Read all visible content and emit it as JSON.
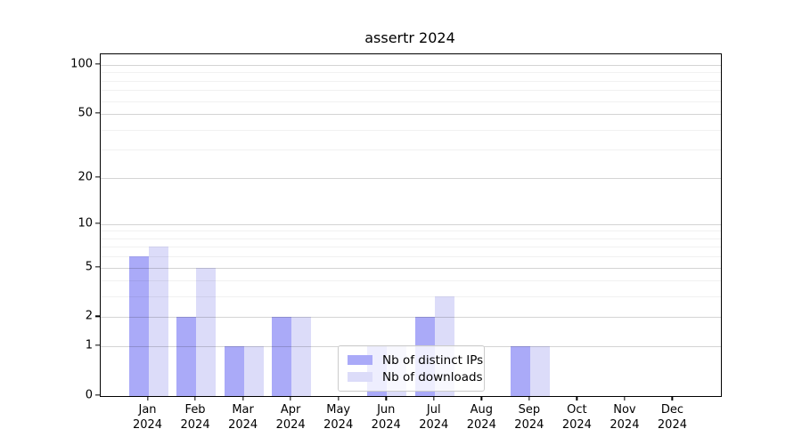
{
  "chart_data": {
    "type": "bar",
    "title": "assertr 2024",
    "categories": [
      "Jan",
      "Feb",
      "Mar",
      "Apr",
      "May",
      "Jun",
      "Jul",
      "Aug",
      "Sep",
      "Oct",
      "Nov",
      "Dec"
    ],
    "category_year": "2024",
    "series": [
      {
        "name": "Nb of distinct IPs",
        "color": "#aaaaf8",
        "values": [
          6,
          2,
          1,
          2,
          0,
          1,
          2,
          0,
          1,
          0,
          0,
          0
        ]
      },
      {
        "name": "Nb of downloads",
        "color": "#dcdcf9",
        "values": [
          7,
          5,
          1,
          2,
          0,
          1,
          3,
          0,
          1,
          0,
          0,
          0
        ]
      }
    ],
    "yscale": "log1p",
    "ylim": [
      0,
      117
    ],
    "ytick_labels": [
      100,
      50,
      20,
      10,
      5,
      2,
      1,
      0
    ],
    "major_gridlines": [
      1,
      2,
      5,
      10,
      20,
      50,
      100
    ],
    "minor_gridlines": [
      3,
      4,
      6,
      7,
      8,
      9,
      30,
      40,
      60,
      70,
      80,
      90
    ],
    "grid": true,
    "legend_position": "lower center"
  }
}
